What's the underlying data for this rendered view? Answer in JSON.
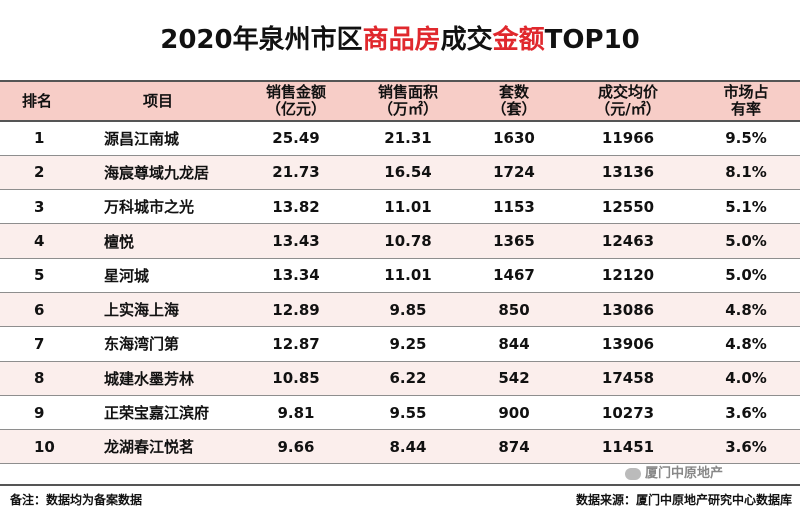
{
  "title": {
    "part1": "2020年泉州市区",
    "part2": "商品房",
    "part3": "成交",
    "part4": "金额",
    "part5": "TOP10",
    "accent_color": "#e0282d"
  },
  "headers": [
    {
      "line1": "排名",
      "line2": ""
    },
    {
      "line1": "项目",
      "line2": ""
    },
    {
      "line1": "销售金额",
      "line2": "（亿元）"
    },
    {
      "line1": "销售面积",
      "line2": "（万㎡）"
    },
    {
      "line1": "套数",
      "line2": "（套）"
    },
    {
      "line1": "成交均价",
      "line2": "（元/㎡）"
    },
    {
      "line1": "市场占",
      "line2": "有率"
    }
  ],
  "rows": [
    [
      "1",
      "源昌江南城",
      "25.49",
      "21.31",
      "1630",
      "11966",
      "9.5%"
    ],
    [
      "2",
      "海宸尊域九龙居",
      "21.73",
      "16.54",
      "1724",
      "13136",
      "8.1%"
    ],
    [
      "3",
      "万科城市之光",
      "13.82",
      "11.01",
      "1153",
      "12550",
      "5.1%"
    ],
    [
      "4",
      "檀悦",
      "13.43",
      "10.78",
      "1365",
      "12463",
      "5.0%"
    ],
    [
      "5",
      "星河城",
      "13.34",
      "11.01",
      "1467",
      "12120",
      "5.0%"
    ],
    [
      "6",
      "上实海上海",
      "12.89",
      "9.85",
      "850",
      "13086",
      "4.8%"
    ],
    [
      "7",
      "东海湾门第",
      "12.87",
      "9.25",
      "844",
      "13906",
      "4.8%"
    ],
    [
      "8",
      "城建水墨芳林",
      "10.85",
      "6.22",
      "542",
      "17458",
      "4.0%"
    ],
    [
      "9",
      "正荣宝嘉江滨府",
      "9.81",
      "9.55",
      "900",
      "10273",
      "3.6%"
    ],
    [
      "10",
      "龙湖春江悦茗",
      "9.66",
      "8.44",
      "874",
      "11451",
      "3.6%"
    ]
  ],
  "footer": {
    "note": "备注：数据均为备案数据",
    "source": "数据来源：厦门中原地产研究中心数据库"
  },
  "watermark": {
    "text": "厦门中原地产",
    "icon": "wechat-icon"
  }
}
